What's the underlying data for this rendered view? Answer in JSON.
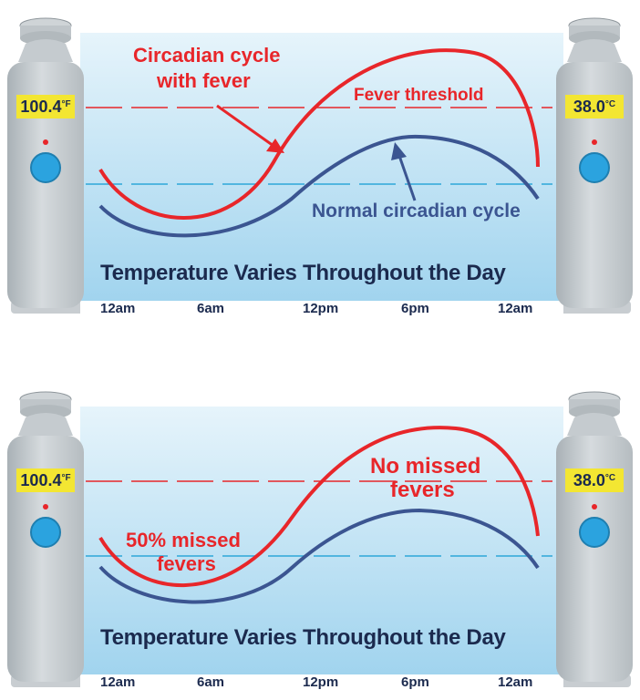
{
  "units": {
    "f": "°F",
    "c": "°C"
  },
  "thermometers": {
    "left_value": "100.4",
    "right_value": "38.0"
  },
  "ticks": [
    "12am",
    "6am",
    "12pm",
    "6pm",
    "12am"
  ],
  "panels": [
    {
      "title": "Temperature Varies Throughout the Day",
      "labels": {
        "fever_cycle_l1": "Circadian cycle",
        "fever_cycle_l2": "with fever",
        "fever_threshold": "Fever threshold",
        "normal_cycle": "Normal circadian cycle"
      }
    },
    {
      "title": "Temperature Varies Throughout the Day",
      "labels": {
        "missed_l1": "50% missed",
        "missed_l2": "fevers",
        "no_missed_l1": "No missed",
        "no_missed_l2": "fevers"
      }
    }
  ],
  "colors": {
    "fever_curve": "#e8262a",
    "normal_curve": "#3b5591",
    "threshold_line": "#e8262a",
    "baseline_line": "#2ea8d8",
    "thermometer_body": "#c3c9cd",
    "lcd": "#f3e632",
    "sensor": "#2ba3df"
  }
}
